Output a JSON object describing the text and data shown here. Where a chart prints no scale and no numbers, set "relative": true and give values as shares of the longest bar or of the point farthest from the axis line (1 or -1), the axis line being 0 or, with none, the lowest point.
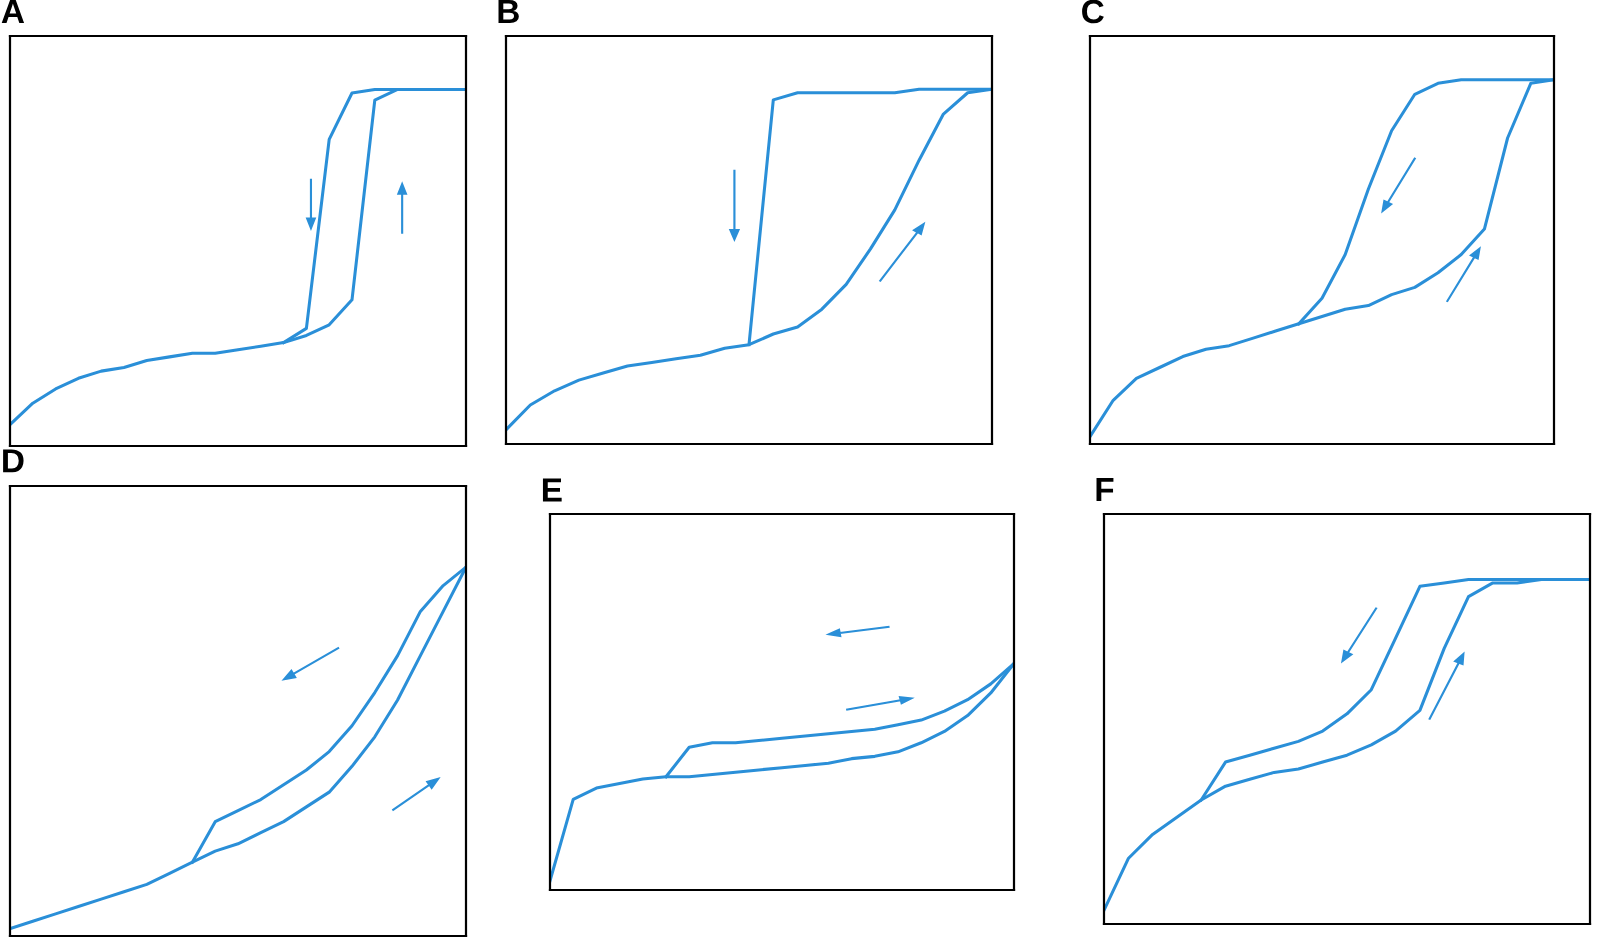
{
  "chart_data": [
    {
      "type": "line",
      "title": "A",
      "relative": true,
      "categories": [
        null,
        null,
        null,
        null,
        null,
        null,
        null,
        null,
        null,
        null,
        null,
        null,
        null,
        null,
        null,
        null,
        null,
        null,
        null,
        null,
        null
      ],
      "series": [
        {
          "color": "#2a8fd8",
          "values": [
            0.06,
            0.12,
            0.16,
            0.19,
            0.21,
            0.22,
            0.24,
            0.25,
            0.26,
            0.26,
            0.27,
            0.28,
            0.29,
            0.31,
            0.34,
            0.41,
            0.97,
            1,
            1,
            1,
            1
          ]
        },
        {
          "color": "#2a8fd8",
          "values": [
            null,
            null,
            null,
            null,
            null,
            null,
            null,
            null,
            null,
            null,
            null,
            null,
            0.29,
            0.33,
            0.86,
            0.99,
            1,
            1,
            1,
            1,
            1
          ]
        }
      ]
    },
    {
      "type": "line",
      "title": "B",
      "relative": true,
      "categories": [
        null,
        null,
        null,
        null,
        null,
        null,
        null,
        null,
        null,
        null,
        null,
        null,
        null,
        null,
        null,
        null,
        null,
        null,
        null,
        null,
        null
      ],
      "series": [
        {
          "color": "#2a8fd8",
          "values": [
            0.04,
            0.11,
            0.15,
            0.18,
            0.2,
            0.22,
            0.23,
            0.24,
            0.25,
            0.27,
            0.28,
            0.31,
            0.33,
            0.38,
            0.45,
            0.55,
            0.66,
            0.8,
            0.93,
            0.99,
            1
          ]
        },
        {
          "color": "#2a8fd8",
          "values": [
            null,
            null,
            null,
            null,
            null,
            null,
            null,
            null,
            null,
            null,
            0.28,
            0.97,
            0.99,
            0.99,
            0.99,
            0.99,
            0.99,
            1,
            1,
            1,
            1
          ]
        }
      ]
    },
    {
      "type": "line",
      "title": "C",
      "relative": true,
      "categories": [
        null,
        null,
        null,
        null,
        null,
        null,
        null,
        null,
        null,
        null,
        null,
        null,
        null,
        null,
        null,
        null,
        null,
        null,
        null,
        null,
        null
      ],
      "series": [
        {
          "color": "#2a8fd8",
          "values": [
            0.02,
            0.12,
            0.18,
            0.21,
            0.24,
            0.26,
            0.27,
            0.29,
            0.31,
            0.33,
            0.35,
            0.37,
            0.38,
            0.41,
            0.43,
            0.47,
            0.52,
            0.59,
            0.84,
            0.99,
            1
          ]
        },
        {
          "color": "#2a8fd8",
          "values": [
            null,
            null,
            null,
            null,
            null,
            null,
            null,
            null,
            null,
            0.33,
            0.4,
            0.52,
            0.7,
            0.86,
            0.96,
            0.99,
            1,
            1,
            1,
            1,
            1
          ]
        }
      ]
    },
    {
      "type": "line",
      "title": "D",
      "relative": true,
      "categories": [
        null,
        null,
        null,
        null,
        null,
        null,
        null,
        null,
        null,
        null,
        null,
        null,
        null,
        null,
        null,
        null,
        null,
        null,
        null,
        null,
        null
      ],
      "series": [
        {
          "color": "#2a8fd8",
          "values": [
            0.02,
            0.04,
            0.06,
            0.08,
            0.1,
            0.12,
            0.14,
            0.17,
            0.2,
            0.23,
            0.25,
            0.28,
            0.31,
            0.35,
            0.39,
            0.46,
            0.54,
            0.64,
            0.76,
            0.88,
            1
          ]
        },
        {
          "color": "#2a8fd8",
          "values": [
            null,
            null,
            null,
            null,
            null,
            null,
            null,
            null,
            0.2,
            0.31,
            0.34,
            0.37,
            0.41,
            0.45,
            0.5,
            0.57,
            0.66,
            0.76,
            0.88,
            0.95,
            1
          ]
        }
      ]
    },
    {
      "type": "line",
      "title": "E",
      "relative": true,
      "categories": [
        null,
        null,
        null,
        null,
        null,
        null,
        null,
        null,
        null,
        null,
        null,
        null,
        null,
        null,
        null,
        null,
        null,
        null,
        null,
        null,
        null
      ],
      "series": [
        {
          "color": "#2a8fd8",
          "values": [
            0.04,
            0.4,
            0.45,
            0.47,
            0.49,
            0.5,
            0.5,
            0.51,
            0.52,
            0.53,
            0.54,
            0.55,
            0.56,
            0.58,
            0.59,
            0.61,
            0.65,
            0.7,
            0.77,
            0.87,
            1
          ]
        },
        {
          "color": "#2a8fd8",
          "values": [
            null,
            null,
            null,
            null,
            null,
            0.5,
            0.63,
            0.65,
            0.65,
            0.66,
            0.67,
            0.68,
            0.69,
            0.7,
            0.71,
            0.73,
            0.75,
            0.79,
            0.84,
            0.91,
            1
          ]
        }
      ]
    },
    {
      "type": "line",
      "title": "F",
      "relative": true,
      "categories": [
        null,
        null,
        null,
        null,
        null,
        null,
        null,
        null,
        null,
        null,
        null,
        null,
        null,
        null,
        null,
        null,
        null,
        null,
        null,
        null,
        null
      ],
      "series": [
        {
          "color": "#2a8fd8",
          "values": [
            0.04,
            0.19,
            0.26,
            0.31,
            0.36,
            0.4,
            0.42,
            0.44,
            0.45,
            0.47,
            0.49,
            0.52,
            0.56,
            0.62,
            0.8,
            0.95,
            0.99,
            0.99,
            1,
            1,
            1
          ]
        },
        {
          "color": "#2a8fd8",
          "values": [
            null,
            null,
            null,
            null,
            0.36,
            0.47,
            0.49,
            0.51,
            0.53,
            0.56,
            0.61,
            0.68,
            0.83,
            0.98,
            0.99,
            1,
            1,
            1,
            1,
            1,
            1
          ]
        }
      ]
    }
  ]
}
